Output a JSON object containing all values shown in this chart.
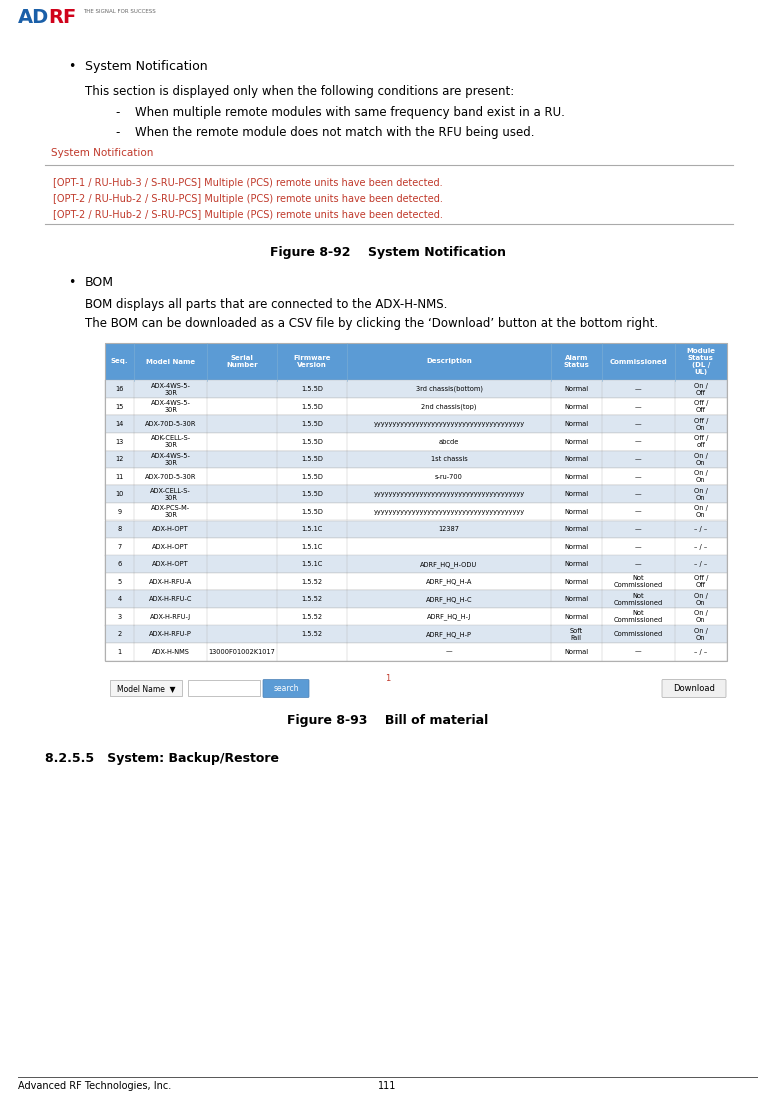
{
  "page_width": 7.75,
  "page_height": 10.99,
  "dpi": 100,
  "bg": "#ffffff",
  "logo_ad_color": "#1a5fa8",
  "logo_rf_color": "#d0021b",
  "logo_tagline": "THE SIGNAL FOR SUCCESS",
  "footer_left": "Advanced RF Technologies, Inc.",
  "footer_center": "111",
  "bullet1_title": "System Notification",
  "body1": "This section is displayed only when the following conditions are present:",
  "dash1": "When multiple remote modules with same frequency band exist in a RU.",
  "dash2": "When the remote module does not match with the RFU being used.",
  "notif_title": "System Notification",
  "notif_title_color": "#c0392b",
  "notif_lines": [
    "[OPT-1 / RU-Hub-3 / S-RU-PCS] Multiple (PCS) remote units have been detected.",
    "[OPT-2 / RU-Hub-2 / S-RU-PCS] Multiple (PCS) remote units have been detected.",
    "[OPT-2 / RU-Hub-2 / S-RU-PCS] Multiple (PCS) remote units have been detected."
  ],
  "notif_text_color": "#c0392b",
  "caption92": "Figure 8-92    System Notification",
  "bullet2_title": "BOM",
  "body2a": "BOM displays all parts that are connected to the ADX-H-NMS.",
  "body2b": "The BOM can be downloaded as a CSV file by clicking the ‘Download’ button at the bottom right.",
  "caption93": "Figure 8-93    Bill of material",
  "section825": "8.2.5.5   System: Backup/Restore",
  "tbl_hdr_bg": "#5b9bd5",
  "tbl_hdr_fg": "#ffffff",
  "tbl_alt_bg": "#dce6f1",
  "tbl_row_bg": "#ffffff",
  "tbl_border": "#b0b0b0",
  "tbl_headers": [
    "Seq.",
    "Model Name",
    "Serial\nNumber",
    "Firmware\nVersion",
    "Description",
    "Alarm\nStatus",
    "Commissioned",
    "Module\nStatus\n(DL /\nUL)"
  ],
  "tbl_col_w": [
    0.3,
    0.75,
    0.72,
    0.72,
    2.1,
    0.52,
    0.75,
    0.54
  ],
  "tbl_rows": [
    [
      "16",
      "ADX-4WS-5-\n30R",
      "",
      "1.5.5D",
      "3rd chassis(bottom)",
      "Normal",
      "—",
      "On /\nOff"
    ],
    [
      "15",
      "ADX-4WS-5-\n30R",
      "",
      "1.5.5D",
      "2nd chassis(top)",
      "Normal",
      "—",
      "Off /\nOff"
    ],
    [
      "14",
      "ADX-70D-5-30R",
      "",
      "1.5.5D",
      "yyyyyyyyyyyyyyyyyyyyyyyyyyyyyyyyyyyyyyy",
      "Normal",
      "—",
      "Off /\nOn"
    ],
    [
      "13",
      "ADK-CELL-S-\n30R",
      "",
      "1.5.5D",
      "abcde",
      "Normal",
      "—",
      "Off /\noff"
    ],
    [
      "12",
      "ADX-4WS-5-\n30R",
      "",
      "1.5.5D",
      "1st chassis",
      "Normal",
      "—",
      "On /\nOn"
    ],
    [
      "11",
      "ADX-70D-5-30R",
      "",
      "1.5.5D",
      "s-ru-700",
      "Normal",
      "—",
      "On /\nOn"
    ],
    [
      "10",
      "ADX-CELL-S-\n30R",
      "",
      "1.5.5D",
      "yyyyyyyyyyyyyyyyyyyyyyyyyyyyyyyyyyyyyyy",
      "Normal",
      "—",
      "On /\nOn"
    ],
    [
      "9",
      "ADX-PCS-M-\n30R",
      "",
      "1.5.5D",
      "yyyyyyyyyyyyyyyyyyyyyyyyyyyyyyyyyyyyyyy",
      "Normal",
      "—",
      "On /\nOn"
    ],
    [
      "8",
      "ADX-H-OPT",
      "",
      "1.5.1C",
      "12387",
      "Normal",
      "—",
      "– / –"
    ],
    [
      "7",
      "ADX-H-OPT",
      "",
      "1.5.1C",
      "",
      "Normal",
      "—",
      "– / –"
    ],
    [
      "6",
      "ADX-H-OPT",
      "",
      "1.5.1C",
      "ADRF_HQ_H-ODU",
      "Normal",
      "—",
      "– / –"
    ],
    [
      "5",
      "ADX-H-RFU-A",
      "",
      "1.5.52",
      "ADRF_HQ_H-A",
      "Normal",
      "Not\nCommissioned",
      "Off /\nOff"
    ],
    [
      "4",
      "ADX-H-RFU-C",
      "",
      "1.5.52",
      "ADRF_HQ_H-C",
      "Normal",
      "Not\nCommissioned",
      "On /\nOn"
    ],
    [
      "3",
      "ADX-H-RFU-J",
      "",
      "1.5.52",
      "ADRF_HQ_H-J",
      "Normal",
      "Not\nCommissioned",
      "On /\nOn"
    ],
    [
      "2",
      "ADX-H-RFU-P",
      "",
      "1.5.52",
      "ADRF_HQ_H-P",
      "Soft\nFail",
      "Commissioned",
      "On /\nOn"
    ],
    [
      "1",
      "ADX-H-NMS",
      "13000F01002K1017",
      "",
      "—",
      "Normal",
      "—",
      "– / –"
    ]
  ]
}
